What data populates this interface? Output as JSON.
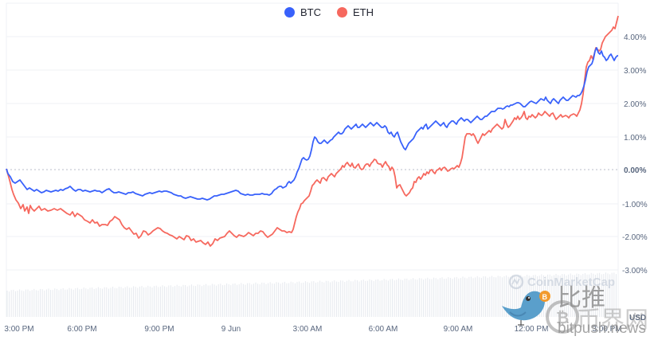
{
  "legend": [
    {
      "label": "BTC",
      "color": "#3861fb"
    },
    {
      "label": "ETH",
      "color": "#f6685e"
    }
  ],
  "y_axis": {
    "ticks": [
      "4.00%",
      "3.00%",
      "2.00%",
      "1.00%",
      "0.00%",
      "-1.00%",
      "-2.00%",
      "-3.00%"
    ],
    "currency_label": "USD"
  },
  "x_axis": {
    "ticks": [
      "3:00 PM",
      "6:00 PM",
      "9:00 PM",
      "9 Jun",
      "3:00 AM",
      "6:00 AM",
      "9:00 AM",
      "12:00 PM",
      "3:00 PM"
    ]
  },
  "watermarks": {
    "brand": "CoinMarketCap",
    "site_cn": "比推",
    "site_cn2": "币界网",
    "site_url": "bitpush.news"
  },
  "chart_data": {
    "type": "line",
    "title": "",
    "xlabel": "",
    "ylabel": "",
    "y_unit": "%",
    "ylim": [
      -3.5,
      4.8
    ],
    "grid": true,
    "legend_position": "top-center",
    "x": [
      "3:00 PM",
      "6:00 PM",
      "9:00 PM",
      "9 Jun",
      "3:00 AM",
      "6:00 AM",
      "9:00 AM",
      "12:00 PM",
      "3:00 PM"
    ],
    "series": [
      {
        "name": "BTC",
        "color": "#3861fb",
        "values": [
          -0.6,
          -0.72,
          -0.75,
          -0.82,
          0.8,
          1.2,
          1.3,
          1.95,
          3.4
        ]
      },
      {
        "name": "ETH",
        "color": "#f6685e",
        "values": [
          -1.3,
          -1.55,
          -2.1,
          -1.95,
          -0.6,
          0.2,
          0.1,
          1.7,
          4.55
        ]
      }
    ]
  }
}
